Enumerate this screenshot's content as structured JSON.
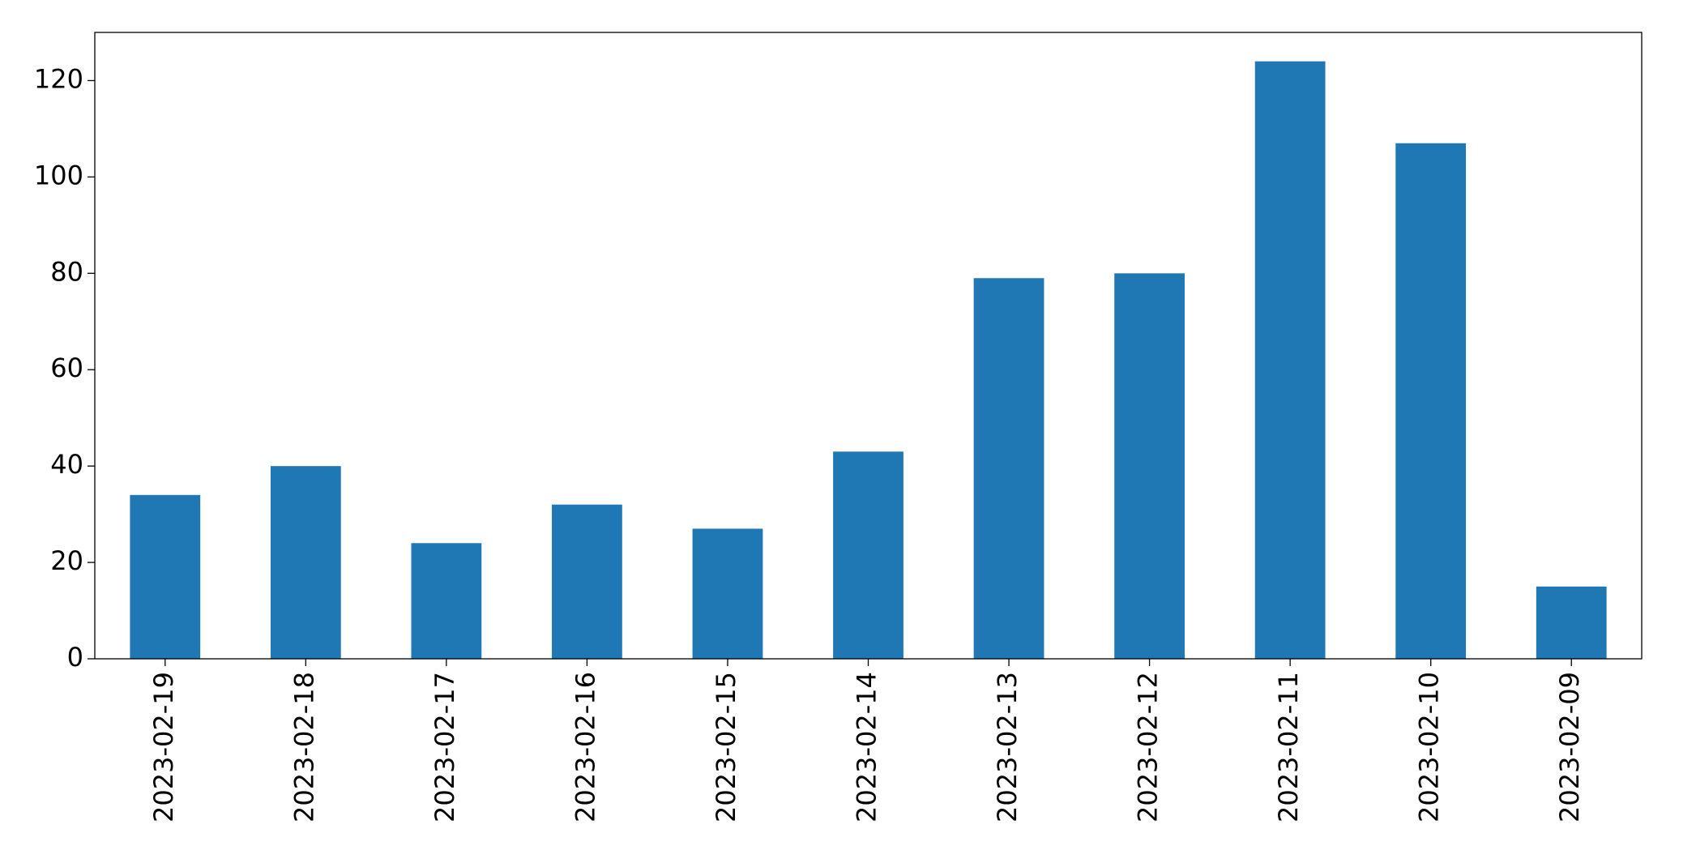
{
  "chart_data": {
    "type": "bar",
    "categories": [
      "2023-02-19",
      "2023-02-18",
      "2023-02-17",
      "2023-02-16",
      "2023-02-15",
      "2023-02-14",
      "2023-02-13",
      "2023-02-12",
      "2023-02-11",
      "2023-02-10",
      "2023-02-09"
    ],
    "values": [
      34,
      40,
      24,
      32,
      27,
      43,
      79,
      80,
      124,
      107,
      15
    ],
    "color": "#1f77b4",
    "ylim": [
      0,
      130
    ],
    "yticks": [
      0,
      20,
      40,
      60,
      80,
      100,
      120
    ],
    "grid": false
  }
}
